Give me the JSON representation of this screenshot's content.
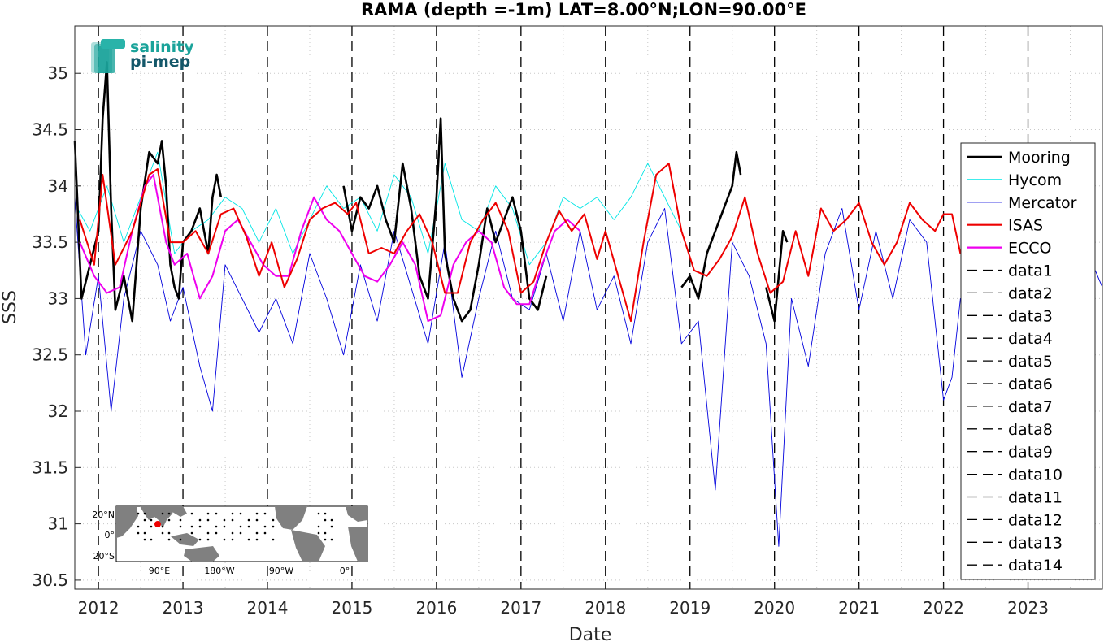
{
  "chart_data": {
    "type": "line",
    "title": "RAMA (depth =-1m) LAT=8.00°N;LON=90.00°E",
    "xlabel": "Date",
    "ylabel": "SSS",
    "xlim": [
      2011.72,
      2023.88
    ],
    "ylim": [
      30.42,
      35.42
    ],
    "grid": "dotted",
    "legend_position": "right",
    "x_ticks": [
      2012,
      2013,
      2014,
      2015,
      2016,
      2017,
      2018,
      2019,
      2020,
      2021,
      2022,
      2023
    ],
    "x_tick_labels": [
      "2012",
      "2013",
      "2014",
      "2015",
      "2016",
      "2017",
      "2018",
      "2019",
      "2020",
      "2021",
      "2022",
      "2023"
    ],
    "y_ticks": [
      30.5,
      31,
      31.5,
      32,
      32.5,
      33,
      33.5,
      34,
      34.5,
      35
    ],
    "y_tick_labels": [
      "30.5",
      "31",
      "31.5",
      "32",
      "32.5",
      "33",
      "33.5",
      "34",
      "34.5",
      "35"
    ],
    "series": [
      {
        "name": "Mooring",
        "color": "#000000",
        "style": "thick",
        "segments": [
          {
            "x": [
              2011.72,
              2011.8,
              2011.9,
              2012.0,
              2012.05,
              2012.1,
              2012.15,
              2012.2,
              2012.3,
              2012.4,
              2012.5,
              2012.6,
              2012.7,
              2012.75,
              2012.8,
              2012.85,
              2012.9,
              2012.95,
              2013.0,
              2013.1,
              2013.2,
              2013.3,
              2013.35,
              2013.4,
              2013.45
            ],
            "y": [
              34.4,
              33.0,
              33.3,
              33.6,
              34.6,
              35.1,
              33.8,
              32.9,
              33.2,
              32.8,
              33.8,
              34.3,
              34.2,
              34.4,
              34.0,
              33.3,
              33.1,
              33.0,
              33.5,
              33.6,
              33.8,
              33.4,
              33.9,
              34.1,
              33.9
            ]
          },
          {
            "x": [
              2014.9,
              2015.0,
              2015.1,
              2015.2,
              2015.3,
              2015.4,
              2015.5,
              2015.6,
              2015.7,
              2015.8,
              2015.9,
              2016.0,
              2016.05,
              2016.1,
              2016.2,
              2016.3,
              2016.4,
              2016.5,
              2016.6,
              2016.7,
              2016.8,
              2016.9,
              2017.0,
              2017.1,
              2017.2,
              2017.3
            ],
            "y": [
              34.0,
              33.6,
              33.9,
              33.8,
              34.0,
              33.7,
              33.5,
              34.2,
              33.8,
              33.2,
              33.0,
              33.9,
              34.6,
              33.4,
              33.0,
              32.8,
              32.9,
              33.3,
              33.8,
              33.5,
              33.7,
              33.9,
              33.6,
              33.0,
              32.9,
              33.2
            ]
          },
          {
            "x": [
              2018.9,
              2019.0,
              2019.1,
              2019.2,
              2019.3,
              2019.4,
              2019.5,
              2019.55,
              2019.6
            ],
            "y": [
              33.1,
              33.2,
              33.0,
              33.4,
              33.6,
              33.8,
              34.0,
              34.3,
              34.1
            ]
          },
          {
            "x": [
              2019.9,
              2020.0,
              2020.05,
              2020.1,
              2020.15
            ],
            "y": [
              33.1,
              32.8,
              33.2,
              33.6,
              33.5
            ]
          }
        ]
      },
      {
        "name": "Hycom",
        "color": "#00e5e5",
        "style": "thin",
        "segments": [
          {
            "x": [
              2011.75,
              2011.9,
              2012.1,
              2012.3,
              2012.5,
              2012.7,
              2012.9,
              2013.1,
              2013.3,
              2013.5,
              2013.7,
              2013.9,
              2014.1,
              2014.3,
              2014.5,
              2014.7,
              2014.9,
              2015.1,
              2015.3,
              2015.5,
              2015.7,
              2015.9,
              2016.1,
              2016.3,
              2016.5,
              2016.7,
              2016.9,
              2017.1,
              2017.3,
              2017.5,
              2017.7,
              2017.9,
              2018.1,
              2018.3,
              2018.5,
              2018.7,
              2018.9
            ],
            "y": [
              33.8,
              33.6,
              34.0,
              33.5,
              33.9,
              34.3,
              33.4,
              33.6,
              33.7,
              33.9,
              33.8,
              33.5,
              33.8,
              33.4,
              33.7,
              34.0,
              33.8,
              33.9,
              33.6,
              34.1,
              33.9,
              33.4,
              34.2,
              33.7,
              33.6,
              34.0,
              33.8,
              33.3,
              33.5,
              33.9,
              33.8,
              33.9,
              33.7,
              33.9,
              34.2,
              33.9,
              33.6
            ]
          }
        ]
      },
      {
        "name": "Mercator",
        "color": "#0000dd",
        "style": "thin",
        "segments": [
          {
            "x": [
              2011.72,
              2011.85,
              2012.0,
              2012.15,
              2012.3,
              2012.5,
              2012.7,
              2012.85,
              2013.0,
              2013.2,
              2013.35,
              2013.5,
              2013.7,
              2013.9,
              2014.1,
              2014.3,
              2014.5,
              2014.7,
              2014.9,
              2015.1,
              2015.3,
              2015.5,
              2015.7,
              2015.9,
              2016.1,
              2016.3,
              2016.5,
              2016.7,
              2016.9,
              2017.1,
              2017.3,
              2017.5,
              2017.7,
              2017.9,
              2018.1,
              2018.3,
              2018.5,
              2018.7,
              2018.9,
              2019.1,
              2019.3,
              2019.5,
              2019.7,
              2019.9,
              2020.05,
              2020.2,
              2020.4,
              2020.6,
              2020.8,
              2021.0,
              2021.2,
              2021.4,
              2021.6,
              2021.8,
              2022.0,
              2022.1,
              2022.2,
              2022.4,
              2022.6,
              2022.8,
              2023.0,
              2023.2,
              2023.4,
              2023.6,
              2023.88
            ],
            "y": [
              33.9,
              32.5,
              33.2,
              32.0,
              33.0,
              33.6,
              33.3,
              32.8,
              33.1,
              32.4,
              32.0,
              33.3,
              33.0,
              32.7,
              33.0,
              32.6,
              33.4,
              33.0,
              32.5,
              33.3,
              32.8,
              33.6,
              33.1,
              32.6,
              33.5,
              32.3,
              33.0,
              33.6,
              33.0,
              32.9,
              33.4,
              32.8,
              33.6,
              32.9,
              33.2,
              32.6,
              33.5,
              33.8,
              32.6,
              32.8,
              31.3,
              33.5,
              33.2,
              32.6,
              30.8,
              33.0,
              32.4,
              33.4,
              33.8,
              32.9,
              33.6,
              33.0,
              33.7,
              33.5,
              32.1,
              32.3,
              33.0,
              32.8,
              33.4,
              33.2,
              33.5,
              33.8,
              33.3,
              33.6,
              33.1
            ]
          }
        ]
      },
      {
        "name": "ISAS",
        "color": "#ee0000",
        "style": "medium",
        "segments": [
          {
            "x": [
              2011.78,
              2011.95,
              2012.05,
              2012.2,
              2012.4,
              2012.6,
              2012.7,
              2012.85,
              2013.0,
              2013.15,
              2013.3,
              2013.45,
              2013.6,
              2013.75,
              2013.9,
              2014.05,
              2014.2,
              2014.35,
              2014.5,
              2014.65,
              2014.8,
              2014.95,
              2015.05,
              2015.2,
              2015.35,
              2015.5,
              2015.65,
              2015.8,
              2015.95,
              2016.1,
              2016.25,
              2016.4,
              2016.55,
              2016.7,
              2016.85,
              2017.0,
              2017.15,
              2017.3,
              2017.45,
              2017.6,
              2017.75,
              2017.9,
              2018.0,
              2018.15,
              2018.3,
              2018.45,
              2018.6,
              2018.75,
              2018.9,
              2019.05,
              2019.2,
              2019.35,
              2019.5,
              2019.65,
              2019.8,
              2019.95,
              2020.1,
              2020.25,
              2020.4,
              2020.55,
              2020.7,
              2020.85,
              2021.0,
              2021.15,
              2021.3,
              2021.45,
              2021.6,
              2021.75,
              2021.9,
              2022.0,
              2022.1,
              2022.2
            ],
            "y": [
              33.7,
              33.3,
              34.1,
              33.3,
              33.6,
              34.1,
              34.15,
              33.5,
              33.5,
              33.6,
              33.4,
              33.75,
              33.8,
              33.55,
              33.2,
              33.5,
              33.1,
              33.35,
              33.7,
              33.8,
              33.85,
              33.75,
              33.85,
              33.4,
              33.45,
              33.4,
              33.6,
              33.75,
              33.5,
              33.05,
              33.05,
              33.5,
              33.7,
              33.85,
              33.6,
              33.05,
              33.15,
              33.5,
              33.78,
              33.6,
              33.75,
              33.35,
              33.6,
              33.2,
              32.8,
              33.5,
              34.1,
              34.2,
              33.6,
              33.25,
              33.2,
              33.35,
              33.55,
              33.9,
              33.4,
              33.05,
              33.15,
              33.6,
              33.2,
              33.8,
              33.6,
              33.7,
              33.85,
              33.5,
              33.3,
              33.5,
              33.85,
              33.7,
              33.6,
              33.75,
              33.75,
              33.4
            ]
          }
        ]
      },
      {
        "name": "ECCO",
        "color": "#ee00ee",
        "style": "medium",
        "segments": [
          {
            "x": [
              2011.78,
              2011.95,
              2012.1,
              2012.25,
              2012.4,
              2012.55,
              2012.65,
              2012.8,
              2012.9,
              2013.05,
              2013.2,
              2013.35,
              2013.5,
              2013.65,
              2013.8,
              2013.95,
              2014.1,
              2014.25,
              2014.4,
              2014.55,
              2014.7,
              2014.85,
              2015.0,
              2015.15,
              2015.3,
              2015.45,
              2015.6,
              2015.75,
              2015.9,
              2016.05,
              2016.2,
              2016.35,
              2016.5,
              2016.65,
              2016.8,
              2016.95,
              2017.1,
              2017.25,
              2017.4,
              2017.55,
              2017.7
            ],
            "y": [
              33.5,
              33.2,
              33.05,
              33.1,
              33.6,
              34.0,
              34.1,
              33.5,
              33.3,
              33.4,
              33.0,
              33.2,
              33.6,
              33.7,
              33.5,
              33.3,
              33.2,
              33.2,
              33.6,
              33.9,
              33.7,
              33.6,
              33.4,
              33.2,
              33.15,
              33.3,
              33.5,
              33.3,
              32.8,
              32.85,
              33.3,
              33.5,
              33.6,
              33.5,
              33.1,
              32.95,
              32.95,
              33.3,
              33.6,
              33.7,
              33.6
            ]
          }
        ]
      },
      {
        "name": "data1",
        "color": "#000000",
        "style": "dashed",
        "vline": 2012
      },
      {
        "name": "data2",
        "color": "#000000",
        "style": "dashed",
        "vline": 2013
      },
      {
        "name": "data3",
        "color": "#000000",
        "style": "dashed",
        "vline": 2014
      },
      {
        "name": "data4",
        "color": "#000000",
        "style": "dashed",
        "vline": 2015
      },
      {
        "name": "data5",
        "color": "#000000",
        "style": "dashed",
        "vline": 2016
      },
      {
        "name": "data6",
        "color": "#000000",
        "style": "dashed",
        "vline": 2017
      },
      {
        "name": "data7",
        "color": "#000000",
        "style": "dashed",
        "vline": 2018
      },
      {
        "name": "data8",
        "color": "#000000",
        "style": "dashed",
        "vline": 2019
      },
      {
        "name": "data9",
        "color": "#000000",
        "style": "dashed",
        "vline": 2020
      },
      {
        "name": "data10",
        "color": "#000000",
        "style": "dashed",
        "vline": 2021
      },
      {
        "name": "data11",
        "color": "#000000",
        "style": "dashed",
        "vline": 2022
      },
      {
        "name": "data12",
        "color": "#000000",
        "style": "dashed",
        "vline": 2023
      },
      {
        "name": "data13",
        "color": "#000000",
        "style": "dashed",
        "vline": null
      },
      {
        "name": "data14",
        "color": "#000000",
        "style": "dashed",
        "vline": null
      }
    ]
  },
  "logo": {
    "line1": "salinity",
    "line2": "pi-mep"
  },
  "inset_map": {
    "lat_labels": [
      "20°N",
      "0°",
      "20°S"
    ],
    "lon_labels": [
      "90°E",
      "180°W",
      "90°W",
      "0°"
    ]
  }
}
